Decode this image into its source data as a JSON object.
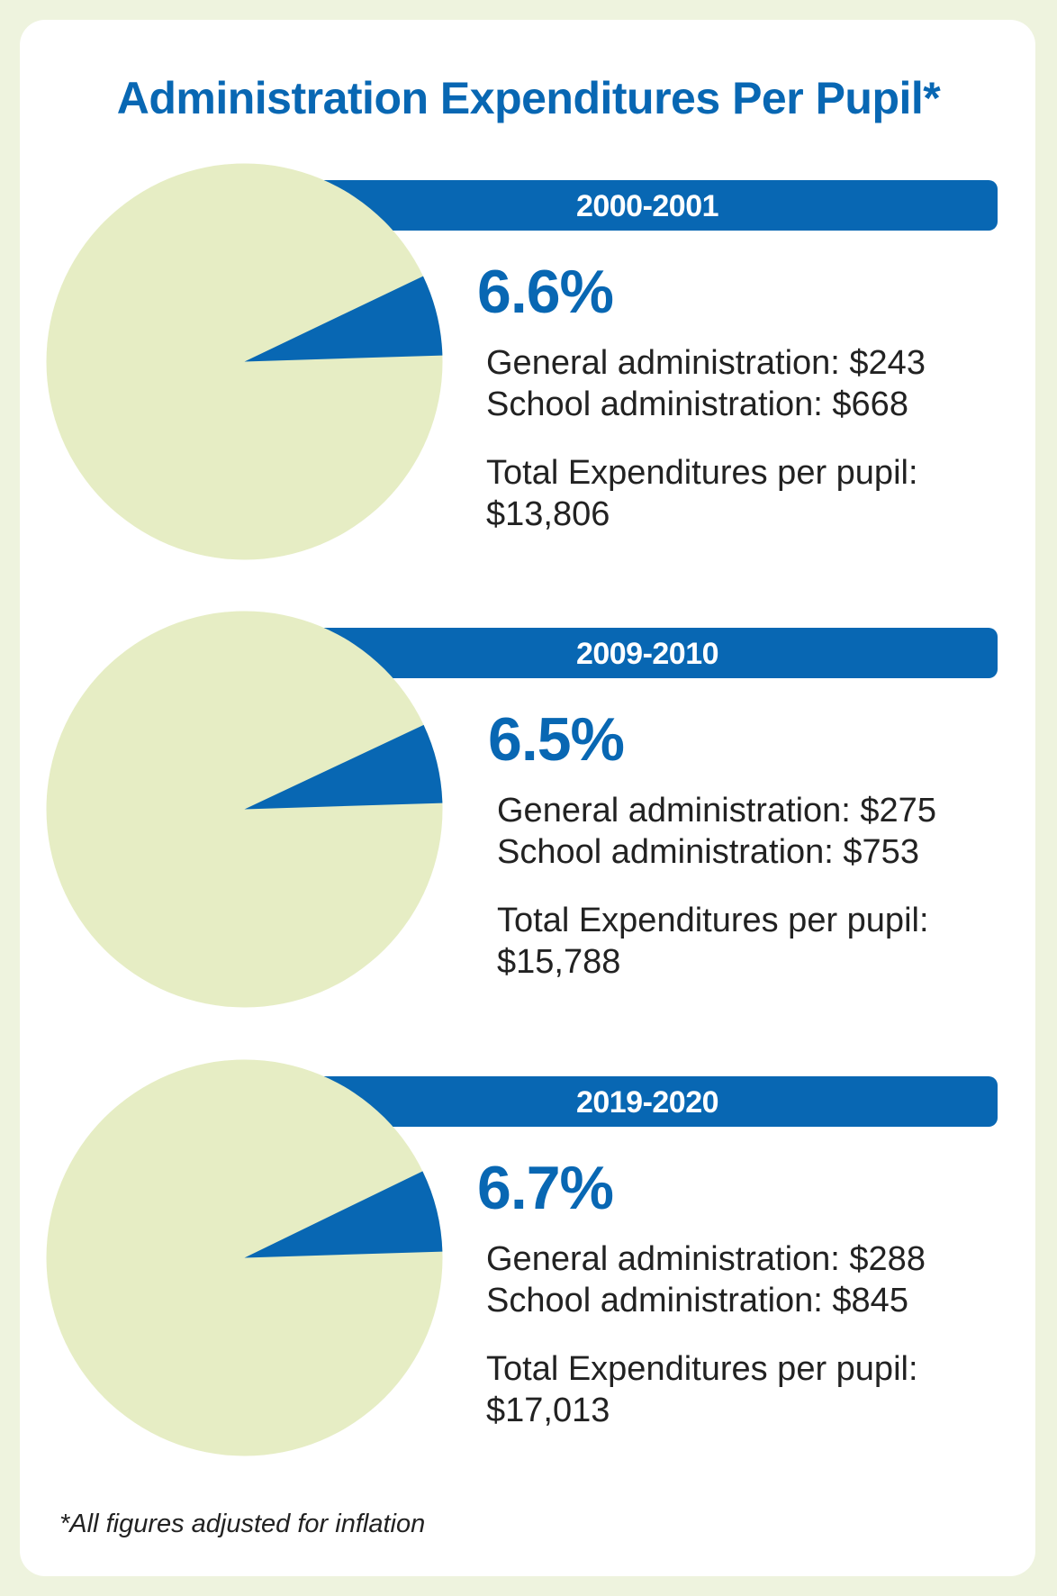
{
  "chart_data": {
    "type": "pie",
    "title": "Administration Expenditures Per Pupil*",
    "footnote": "*All figures adjusted for inflation",
    "colors": {
      "administration": "#0867b3",
      "other": "#e6edc4"
    },
    "panels": [
      {
        "year": "2000-2001",
        "admin_percent": 6.6,
        "percent_label": "6.6%",
        "general_admin_label": "General administration: $243",
        "school_admin_label": "School administration: $668",
        "total_label": "Total Expenditures per pupil:",
        "total_value_label": "$13,806",
        "general_admin": 243,
        "school_admin": 668,
        "total": 13806
      },
      {
        "year": "2009-2010",
        "admin_percent": 6.5,
        "percent_label": "6.5%",
        "general_admin_label": "General administration: $275",
        "school_admin_label": "School administration: $753",
        "total_label": "Total Expenditures per pupil:",
        "total_value_label": "$15,788",
        "general_admin": 275,
        "school_admin": 753,
        "total": 15788
      },
      {
        "year": "2019-2020",
        "admin_percent": 6.7,
        "percent_label": "6.7%",
        "general_admin_label": "General administration: $288",
        "school_admin_label": "School administration: $845",
        "total_label": "Total Expenditures per pupil:",
        "total_value_label": "$17,013",
        "general_admin": 288,
        "school_admin": 845,
        "total": 17013
      }
    ]
  }
}
